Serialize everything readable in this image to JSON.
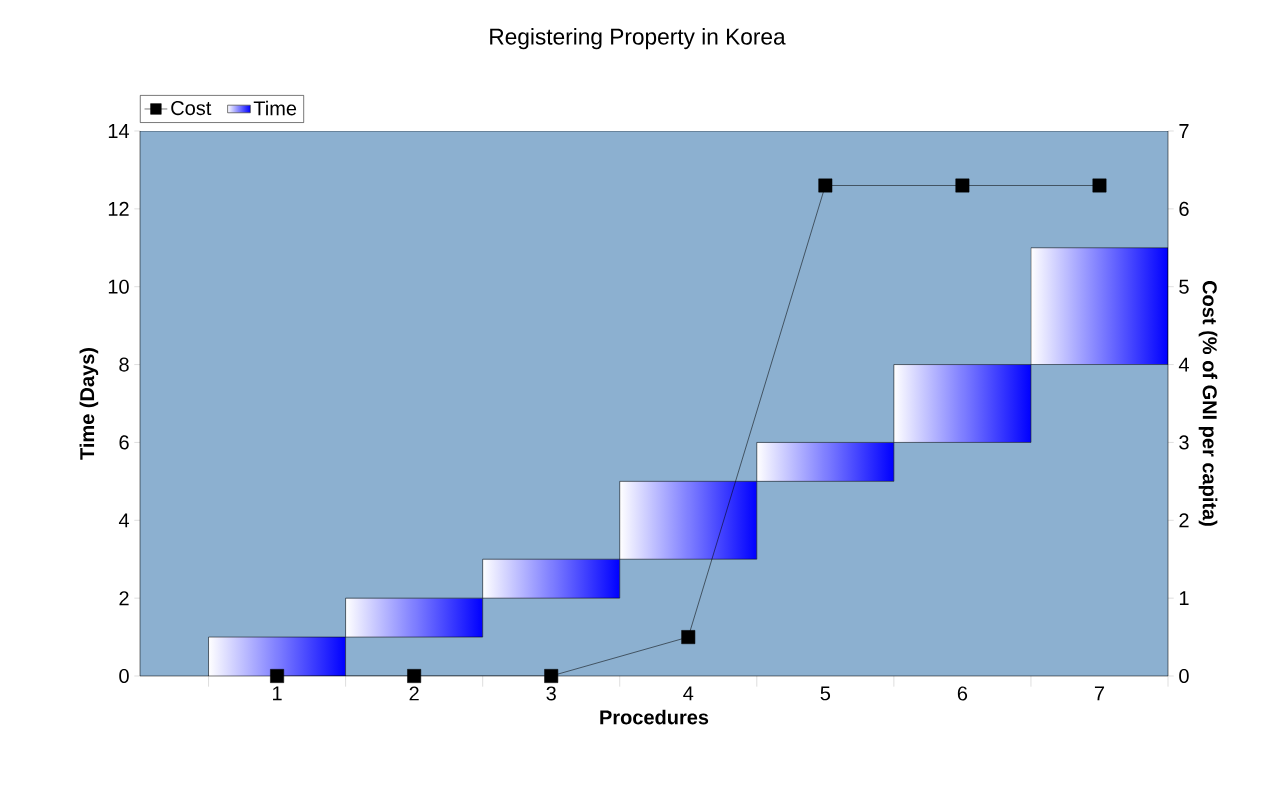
{
  "chart_data": {
    "type": "bar",
    "title": "Registering Property in Korea",
    "xlabel": "Procedures",
    "ylabel": "Time (Days)",
    "y2label": "Cost (% of GNI per capita)",
    "categories": [
      "1",
      "2",
      "3",
      "4",
      "5",
      "6",
      "7"
    ],
    "series": [
      {
        "name": "Time",
        "color": "#0000ff",
        "base": [
          0,
          1,
          2,
          3,
          5,
          6,
          8
        ],
        "values": [
          1,
          1,
          1,
          2,
          1,
          2,
          3
        ]
      },
      {
        "name": "Cost",
        "type": "line",
        "axis": "y2",
        "color": "#000000",
        "marker": "square",
        "values": [
          0,
          0,
          0,
          0.5,
          6.3,
          6.3,
          6.3
        ]
      }
    ],
    "ylim": [
      0,
      14
    ],
    "yticks": [
      0,
      2,
      4,
      6,
      8,
      10,
      12,
      14
    ],
    "y2lim": [
      0,
      7
    ],
    "y2ticks": [
      0,
      1,
      2,
      3,
      4,
      5,
      6,
      7
    ],
    "legend": "top left",
    "grid": false
  }
}
